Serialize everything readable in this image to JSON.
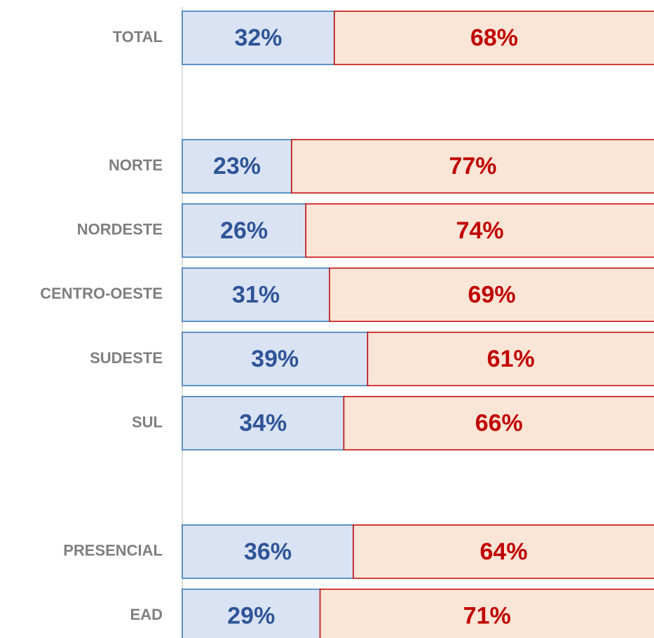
{
  "chart_data": {
    "type": "stacked-bar-horizontal",
    "categories": [
      "TOTAL",
      null,
      "NORTE",
      "NORDESTE",
      "CENTRO-OESTE",
      "SUDESTE",
      "SUL",
      null,
      "PRESENCIAL",
      "EAD"
    ],
    "xlim": [
      0,
      100
    ],
    "series": [
      {
        "color": "#dae3f3",
        "edge": "#2e75b6",
        "text_color": "#2f5597",
        "values": [
          32,
          null,
          23,
          26,
          31,
          39,
          34,
          null,
          36,
          29
        ],
        "value_labels": [
          "32%",
          null,
          "23%",
          "26%",
          "31%",
          "39%",
          "34%",
          null,
          "36%",
          "29%"
        ]
      },
      {
        "color": "#fbe5d6",
        "edge": "#c00000",
        "text_color": "#c00000",
        "values": [
          68,
          null,
          77,
          74,
          69,
          61,
          66,
          null,
          64,
          71
        ],
        "value_labels": [
          "68%",
          null,
          "77%",
          "74%",
          "69%",
          "61%",
          "66%",
          null,
          "64%",
          "71%"
        ]
      }
    ]
  }
}
